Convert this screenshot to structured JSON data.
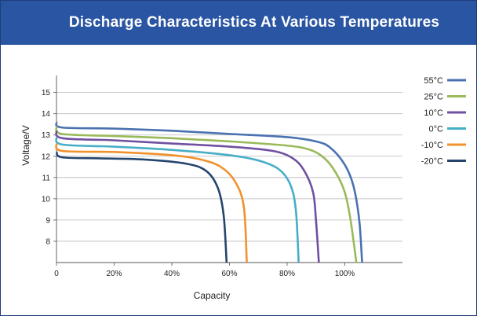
{
  "header": {
    "title": "Discharge Characteristics At Various Temperatures"
  },
  "chart_data": {
    "type": "line",
    "title": "Discharge Characteristics At Various Temperatures",
    "xlabel": "Capacity",
    "ylabel": "Voltage/V",
    "xlim": [
      0,
      1.2
    ],
    "ylim": [
      7,
      15.8
    ],
    "x_ticks": [
      {
        "value": 0,
        "label": "0"
      },
      {
        "value": 0.2,
        "label": "20%"
      },
      {
        "value": 0.4,
        "label": "40%"
      },
      {
        "value": 0.6,
        "label": "60%"
      },
      {
        "value": 0.8,
        "label": "80%"
      },
      {
        "value": 1.0,
        "label": "100%"
      }
    ],
    "y_ticks": [
      8,
      9,
      10,
      11,
      12,
      13,
      14,
      15
    ],
    "grid": "horizontal",
    "legend_position": "top-right",
    "series": [
      {
        "name": "55°C",
        "color": "#4a72b0",
        "points": [
          [
            0,
            13.6
          ],
          [
            0.02,
            13.35
          ],
          [
            0.2,
            13.3
          ],
          [
            0.4,
            13.2
          ],
          [
            0.6,
            13.05
          ],
          [
            0.8,
            12.9
          ],
          [
            0.9,
            12.7
          ],
          [
            0.95,
            12.4
          ],
          [
            1.0,
            11.6
          ],
          [
            1.03,
            10.6
          ],
          [
            1.05,
            9.0
          ],
          [
            1.06,
            7.0
          ]
        ]
      },
      {
        "name": "25°C",
        "color": "#9aba5a",
        "points": [
          [
            0,
            13.4
          ],
          [
            0.02,
            13.05
          ],
          [
            0.2,
            12.95
          ],
          [
            0.4,
            12.85
          ],
          [
            0.6,
            12.7
          ],
          [
            0.8,
            12.5
          ],
          [
            0.88,
            12.3
          ],
          [
            0.93,
            11.9
          ],
          [
            0.97,
            11.2
          ],
          [
            1.0,
            10.3
          ],
          [
            1.02,
            9.0
          ],
          [
            1.04,
            7.0
          ]
        ]
      },
      {
        "name": "10°C",
        "color": "#7050a0",
        "points": [
          [
            0,
            13.2
          ],
          [
            0.02,
            12.85
          ],
          [
            0.2,
            12.75
          ],
          [
            0.4,
            12.6
          ],
          [
            0.6,
            12.45
          ],
          [
            0.75,
            12.25
          ],
          [
            0.82,
            11.9
          ],
          [
            0.86,
            11.3
          ],
          [
            0.89,
            10.3
          ],
          [
            0.9,
            9.0
          ],
          [
            0.91,
            7.0
          ]
        ]
      },
      {
        "name": "0°C",
        "color": "#46aec6",
        "points": [
          [
            0,
            12.9
          ],
          [
            0.02,
            12.55
          ],
          [
            0.2,
            12.45
          ],
          [
            0.4,
            12.3
          ],
          [
            0.6,
            12.05
          ],
          [
            0.7,
            11.8
          ],
          [
            0.77,
            11.4
          ],
          [
            0.81,
            10.7
          ],
          [
            0.83,
            9.5
          ],
          [
            0.84,
            7.0
          ]
        ]
      },
      {
        "name": "-10°C",
        "color": "#f2912c",
        "points": [
          [
            0,
            12.6
          ],
          [
            0.02,
            12.25
          ],
          [
            0.2,
            12.2
          ],
          [
            0.4,
            12.05
          ],
          [
            0.5,
            11.85
          ],
          [
            0.57,
            11.5
          ],
          [
            0.62,
            10.8
          ],
          [
            0.65,
            9.6
          ],
          [
            0.66,
            7.0
          ]
        ]
      },
      {
        "name": "-20°C",
        "color": "#25456e",
        "points": [
          [
            0,
            12.2
          ],
          [
            0.02,
            11.95
          ],
          [
            0.15,
            11.9
          ],
          [
            0.3,
            11.85
          ],
          [
            0.45,
            11.65
          ],
          [
            0.52,
            11.3
          ],
          [
            0.56,
            10.5
          ],
          [
            0.58,
            9.2
          ],
          [
            0.59,
            7.0
          ]
        ]
      }
    ]
  }
}
